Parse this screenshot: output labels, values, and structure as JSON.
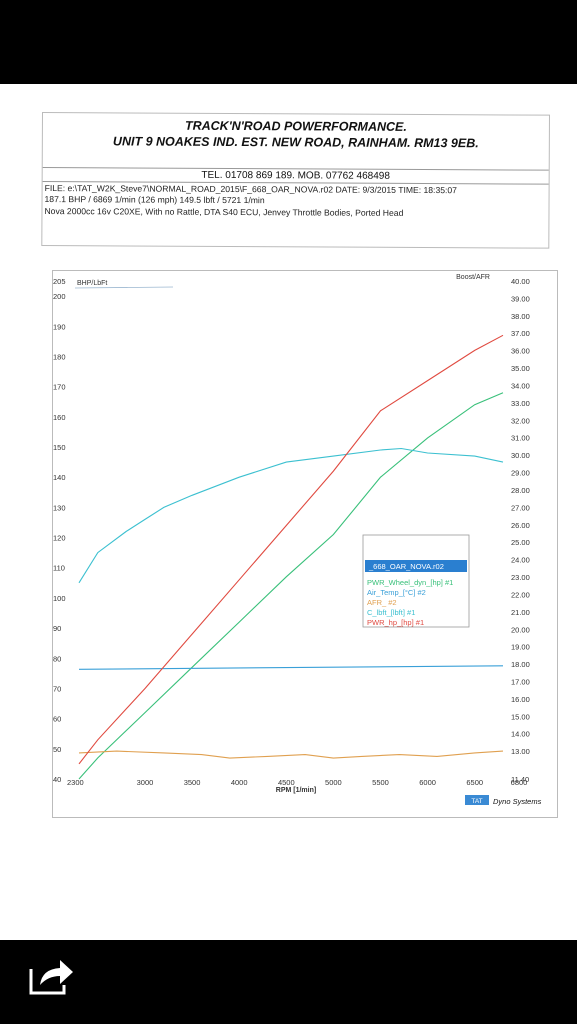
{
  "header": {
    "line1": "TRACK'N'ROAD POWERFORMANCE.",
    "line2": "UNIT 9 NOAKES IND. EST. NEW ROAD, RAINHAM. RM13 9EB.",
    "tel": "TEL. 01708 869 189. MOB. 07762 468498",
    "file": "FILE: e:\\TAT_W2K_Steve7\\NORMAL_ROAD_2015\\F_668_OAR_NOVA.r02  DATE: 9/3/2015  TIME: 18:35:07",
    "bhp": "187.1 BHP / 6869 1/min (126 mph)    149.5 lbft / 5721 1/min",
    "desc": "Nova 2000cc 16v C20XE, With no Rattle, DTA S40 ECU, Jenvey Throttle Bodies, Ported Head"
  },
  "chart_data": {
    "type": "line",
    "xlabel": "RPM  [1/min]",
    "ylabel_left": "BHP/LbFt",
    "ylabel_right": "Boost/AFR",
    "xlim": [
      2300,
      6800
    ],
    "ylim_left": [
      40,
      205
    ],
    "ylim_right": [
      11.4,
      40.0
    ],
    "x_ticks": [
      "2300",
      "3000",
      "3500",
      "4000",
      "4500",
      "5000",
      "5500",
      "6000",
      "6500",
      "6800"
    ],
    "x_tick_values": [
      2300,
      3000,
      3500,
      4000,
      4500,
      5000,
      5500,
      6000,
      6500,
      6800
    ],
    "y_left_ticks": [
      "205",
      "200",
      "190",
      "180",
      "170",
      "160",
      "150",
      "140",
      "130",
      "120",
      "110",
      "100",
      "90",
      "80",
      "70",
      "60",
      "50",
      "40"
    ],
    "y_left_tick_values": [
      205,
      200,
      190,
      180,
      170,
      160,
      150,
      140,
      130,
      120,
      110,
      100,
      90,
      80,
      70,
      60,
      50,
      40
    ],
    "y_right_ticks": [
      "40.00",
      "39.00",
      "38.00",
      "37.00",
      "36.00",
      "35.00",
      "34.00",
      "33.00",
      "32.00",
      "31.00",
      "30.00",
      "29.00",
      "28.00",
      "27.00",
      "26.00",
      "25.00",
      "24.00",
      "23.00",
      "22.00",
      "21.00",
      "20.00",
      "19.00",
      "18.00",
      "17.00",
      "16.00",
      "15.00",
      "14.00",
      "13.00",
      "11.40"
    ],
    "y_right_tick_values": [
      40,
      39,
      38,
      37,
      36,
      35,
      34,
      33,
      32,
      31,
      30,
      29,
      28,
      27,
      26,
      25,
      24,
      23,
      22,
      21,
      20,
      19,
      18,
      17,
      16,
      15,
      14,
      13,
      11.4
    ],
    "legend_title": "_668_OAR_NOVA.r02",
    "legend_placement": "center-right",
    "grid": false,
    "series": [
      {
        "name": "PWR_Wheel_dyn_[hp] #1",
        "color": "#39c07a",
        "axis": "left",
        "x": [
          2300,
          2500,
          3000,
          3500,
          4000,
          4500,
          5000,
          5500,
          6000,
          6500,
          6800
        ],
        "values": [
          40,
          47,
          62,
          77,
          92,
          107,
          121,
          140,
          153,
          164,
          168
        ]
      },
      {
        "name": "Air_Temp_[°C] #2",
        "color": "#3aa0d8",
        "axis": "right",
        "x": [
          2300,
          6800
        ],
        "values": [
          17.7,
          17.9
        ]
      },
      {
        "name": "AFR_ #2",
        "color": "#e0a050",
        "axis": "right",
        "x": [
          2300,
          2700,
          3200,
          3600,
          3900,
          4300,
          4700,
          5000,
          5300,
          5700,
          6100,
          6500,
          6800
        ],
        "values": [
          12.9,
          13.0,
          12.9,
          12.8,
          12.6,
          12.7,
          12.8,
          12.6,
          12.7,
          12.8,
          12.7,
          12.9,
          13.0
        ]
      },
      {
        "name": "C_lbft_[lbft] #1",
        "color": "#3cc0d0",
        "axis": "left",
        "x": [
          2300,
          2500,
          2800,
          3000,
          3200,
          3500,
          4000,
          4500,
          5000,
          5500,
          5721,
          6000,
          6500,
          6800
        ],
        "values": [
          105,
          115,
          122,
          126,
          130,
          134,
          140,
          145,
          147,
          149,
          149.5,
          148,
          147,
          145
        ]
      },
      {
        "name": "PWR_hp_[hp] #1",
        "color": "#e04a40",
        "axis": "left",
        "x": [
          2300,
          2500,
          3000,
          3500,
          4000,
          4500,
          5000,
          5500,
          6000,
          6500,
          6800
        ],
        "values": [
          45,
          53,
          70,
          88,
          106,
          124,
          142,
          162,
          172,
          182,
          187
        ]
      }
    ]
  },
  "footer": {
    "tat": "TAT",
    "brand": "Dyno Systems"
  },
  "ui": {
    "share_icon": "share-icon"
  }
}
